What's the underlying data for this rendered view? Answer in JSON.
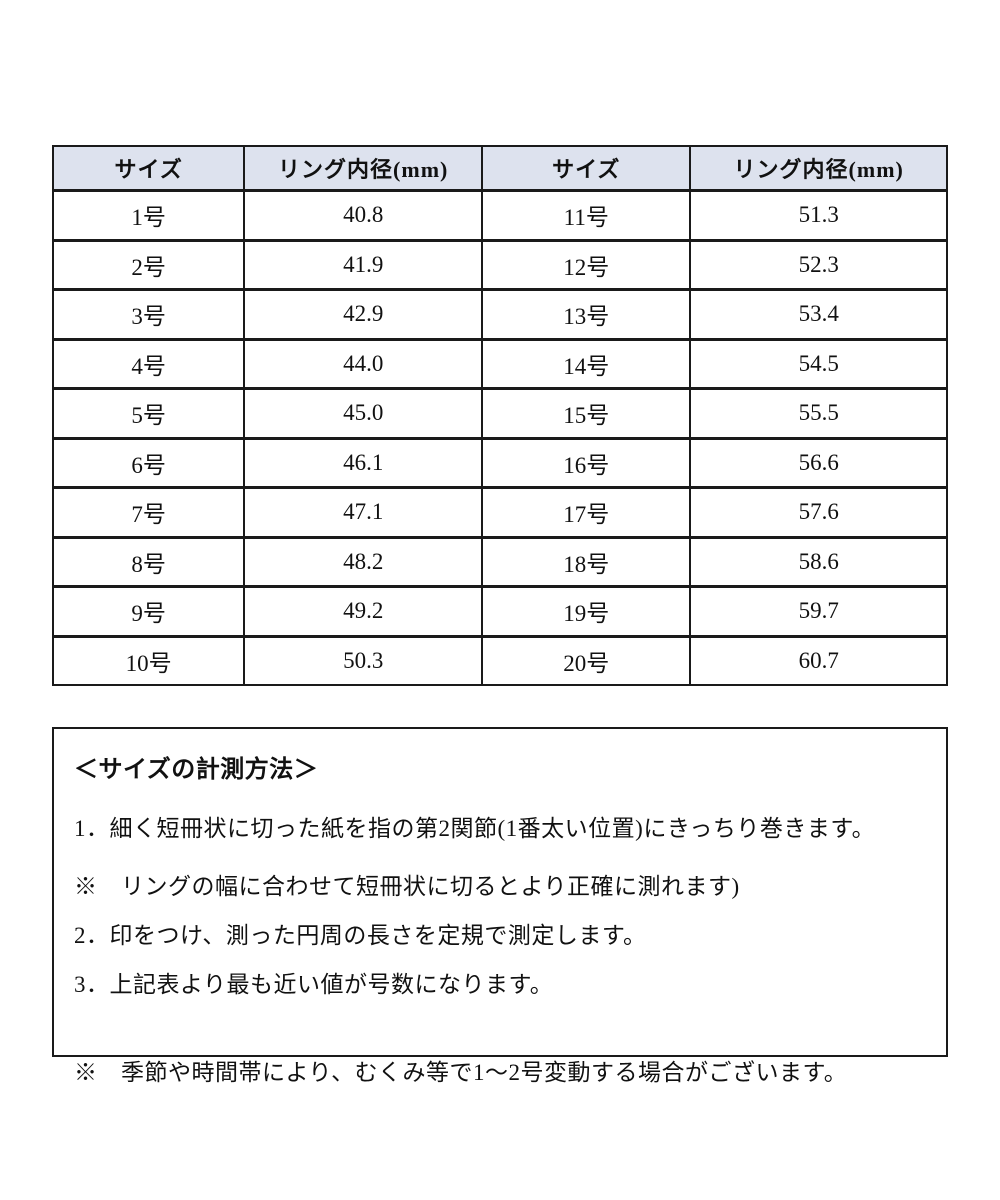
{
  "size_table": {
    "headers": [
      "サイズ",
      "リング内径(mm)",
      "サイズ",
      "リング内径(mm)"
    ],
    "rows": [
      [
        "1号",
        "40.8",
        "11号",
        "51.3"
      ],
      [
        "2号",
        "41.9",
        "12号",
        "52.3"
      ],
      [
        "3号",
        "42.9",
        "13号",
        "53.4"
      ],
      [
        "4号",
        "44.0",
        "14号",
        "54.5"
      ],
      [
        "5号",
        "45.0",
        "15号",
        "55.5"
      ],
      [
        "6号",
        "46.1",
        "16号",
        "56.6"
      ],
      [
        "7号",
        "47.1",
        "17号",
        "57.6"
      ],
      [
        "8号",
        "48.2",
        "18号",
        "58.6"
      ],
      [
        "9号",
        "49.2",
        "19号",
        "59.7"
      ],
      [
        "10号",
        "50.3",
        "20号",
        "60.7"
      ]
    ]
  },
  "measurement_guide": {
    "title": "＜サイズの計測方法＞",
    "steps": [
      "1．細く短冊状に切った紙を指の第2関節(1番太い位置)にきっちり巻きます。",
      "※　リングの幅に合わせて短冊状に切るとより正確に測れます)",
      "2．印をつけ、測った円周の長さを定規で測定します。",
      "3．上記表より最も近い値が号数になります。"
    ],
    "note": "※　季節や時間帯により、むくみ等で1～2号変動する場合がございます。"
  },
  "colors": {
    "header_bg": "#dde2ee",
    "border": "#1a1a1a",
    "text": "#111111"
  }
}
